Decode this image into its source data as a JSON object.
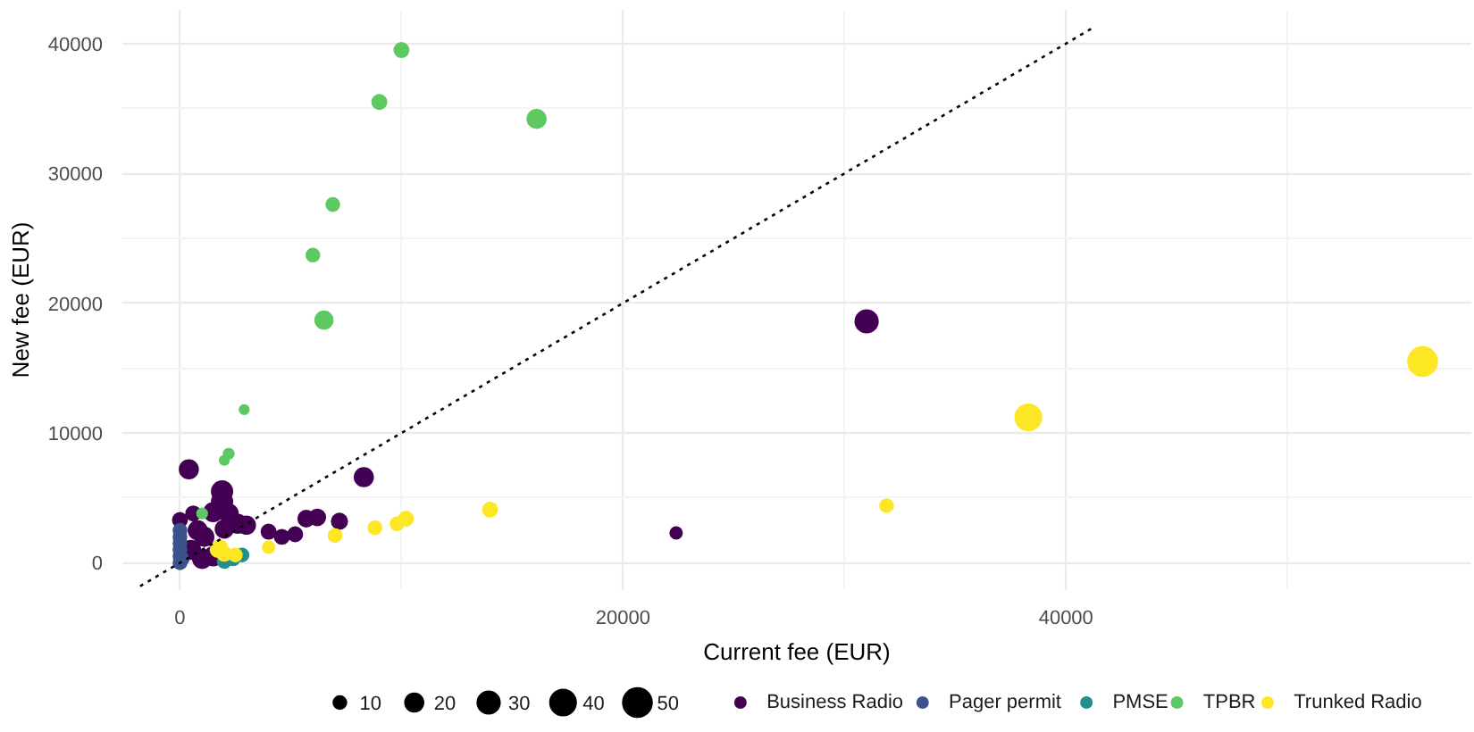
{
  "chart_data": {
    "type": "bubble",
    "xlabel": "Current fee (EUR)",
    "ylabel": "New fee (EUR)",
    "xlim": [
      -2600,
      58300
    ],
    "ylim": [
      -2100,
      42600
    ],
    "xticks": [
      0,
      20000,
      40000
    ],
    "yticks": [
      0,
      10000,
      20000,
      30000,
      40000
    ],
    "grid": true,
    "legend": "bottom",
    "marker": "circle",
    "size_legend": [
      10,
      20,
      30,
      40,
      50
    ],
    "series": [
      {
        "name": "Business Radio",
        "color": "#440154",
        "x": [
          31000,
          22400,
          8300,
          400,
          5700,
          6200,
          7200,
          4000,
          4600,
          5200,
          1900,
          1900,
          1500,
          2200,
          2600,
          3000,
          2000,
          1100,
          800,
          500,
          1500,
          1000,
          0,
          600
        ],
        "values": [
          18600,
          2300,
          6600,
          7200,
          3400,
          3500,
          3200,
          2400,
          2000,
          2200,
          5500,
          4700,
          3900,
          3800,
          3000,
          2900,
          2600,
          2000,
          2500,
          1000,
          500,
          300,
          3300,
          3800
        ],
        "sizes": [
          30,
          8,
          20,
          20,
          15,
          15,
          14,
          12,
          12,
          12,
          25,
          25,
          20,
          20,
          20,
          18,
          18,
          20,
          20,
          20,
          20,
          20,
          12,
          12
        ]
      },
      {
        "name": "Pager permit",
        "color": "#3b528b",
        "x": [
          0,
          0,
          0,
          0,
          0,
          0,
          100
        ],
        "values": [
          2500,
          2000,
          1500,
          1000,
          500,
          0,
          300
        ],
        "sizes": [
          10,
          10,
          10,
          10,
          10,
          10,
          10
        ]
      },
      {
        "name": "PMSE",
        "color": "#21908d",
        "x": [
          2400,
          2800,
          2000
        ],
        "values": [
          300,
          600,
          100
        ],
        "sizes": [
          10,
          10,
          10
        ]
      },
      {
        "name": "TPBR",
        "color": "#5ec962",
        "x": [
          10000,
          9000,
          16100,
          6900,
          6000,
          6500,
          2900,
          2200,
          2000,
          1000
        ],
        "values": [
          39500,
          35500,
          34200,
          27600,
          23700,
          18700,
          11800,
          8400,
          7900,
          3800
        ],
        "sizes": [
          12,
          12,
          20,
          10,
          10,
          18,
          5,
          6,
          5,
          6
        ]
      },
      {
        "name": "Trunked Radio",
        "color": "#fde725",
        "x": [
          56100,
          38300,
          31900,
          14000,
          10200,
          9800,
          8800,
          7000,
          4000,
          2000,
          1700,
          2500,
          1800
        ],
        "values": [
          15500,
          11200,
          4400,
          4100,
          3400,
          3000,
          2700,
          2100,
          1200,
          700,
          1000,
          600,
          1200
        ],
        "sizes": [
          50,
          40,
          10,
          12,
          12,
          10,
          10,
          10,
          8,
          12,
          12,
          10,
          12
        ]
      },
      {
        "type": "line",
        "color": "#000000",
        "line_style": "dotted",
        "marker": "none",
        "x": [
          -1800,
          41300
        ],
        "values": [
          -1800,
          41300
        ]
      }
    ]
  }
}
